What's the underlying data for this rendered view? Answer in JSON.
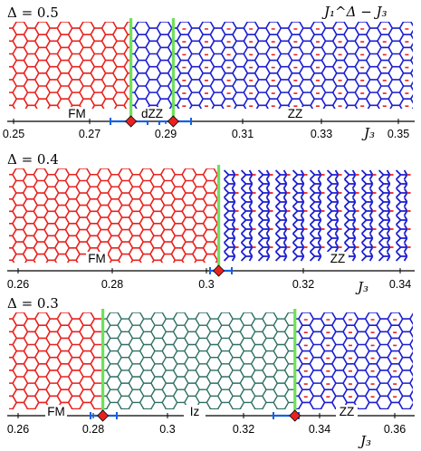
{
  "figure": {
    "corner_label": "J₁^Δ − J₃",
    "axis_label": "J₃",
    "colors": {
      "fm": "#e8231f",
      "zz": "#1c1fd0",
      "iz": "#2f6f63",
      "boundary": "#6fe05a",
      "error": "#1560e0",
      "marker": "#e8231f",
      "axis": "#000000"
    }
  },
  "panels": [
    {
      "delta_label": "Δ = 0.5",
      "ticks": [
        "0.25",
        "0.27",
        "0.29",
        "0.31",
        "0.33",
        "0.35"
      ],
      "phases": [
        {
          "name": "FM",
          "from": 0.25,
          "to": 0.2805
        },
        {
          "name": "dZZ",
          "from": 0.2805,
          "to": 0.2915
        },
        {
          "name": "ZZ",
          "from": 0.2915,
          "to": 0.35
        }
      ],
      "transitions": [
        0.2805,
        0.2915
      ]
    },
    {
      "delta_label": "Δ = 0.4",
      "ticks": [
        "0.26",
        "0.28",
        "0.3",
        "0.32",
        "0.34"
      ],
      "phases": [
        {
          "name": "FM",
          "from": 0.26,
          "to": 0.302
        },
        {
          "name": "ZZ",
          "from": 0.302,
          "to": 0.34
        }
      ],
      "transitions": [
        0.302
      ]
    },
    {
      "delta_label": "Δ = 0.3",
      "ticks": [
        "0.26",
        "0.28",
        "0.3",
        "0.32",
        "0.34",
        "0.36"
      ],
      "phases": [
        {
          "name": "FM",
          "from": 0.26,
          "to": 0.2825
        },
        {
          "name": "Iz",
          "from": 0.2825,
          "to": 0.3335
        },
        {
          "name": "ZZ",
          "from": 0.3335,
          "to": 0.36
        }
      ],
      "transitions": [
        0.2825,
        0.3335
      ]
    }
  ]
}
